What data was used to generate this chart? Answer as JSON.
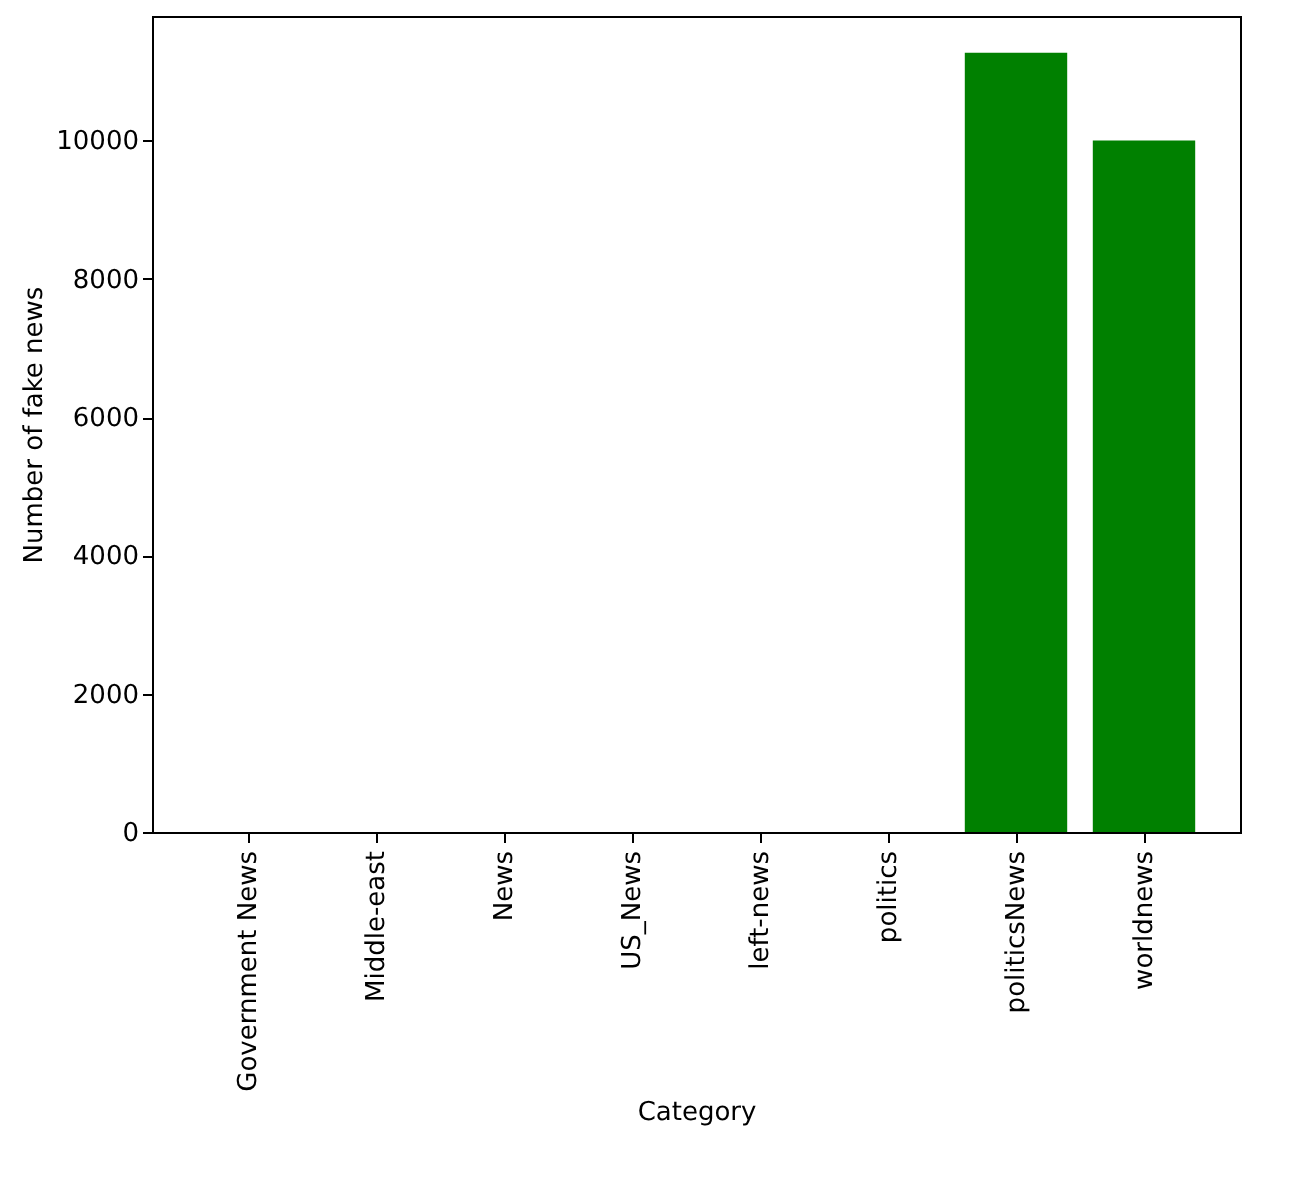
{
  "chart_data": {
    "type": "bar",
    "xlabel": "Category",
    "ylabel": "Number of fake news",
    "categories": [
      "Government News",
      "Middle-east",
      "News",
      "US_News",
      "left-news",
      "politics",
      "politicsNews",
      "worldnews"
    ],
    "values": [
      0,
      0,
      0,
      0,
      0,
      0,
      11270,
      10000
    ],
    "color": "#008000",
    "ylim": [
      0,
      11800
    ],
    "yticks": [
      0,
      2000,
      4000,
      6000,
      8000,
      10000
    ],
    "grid": false
  }
}
